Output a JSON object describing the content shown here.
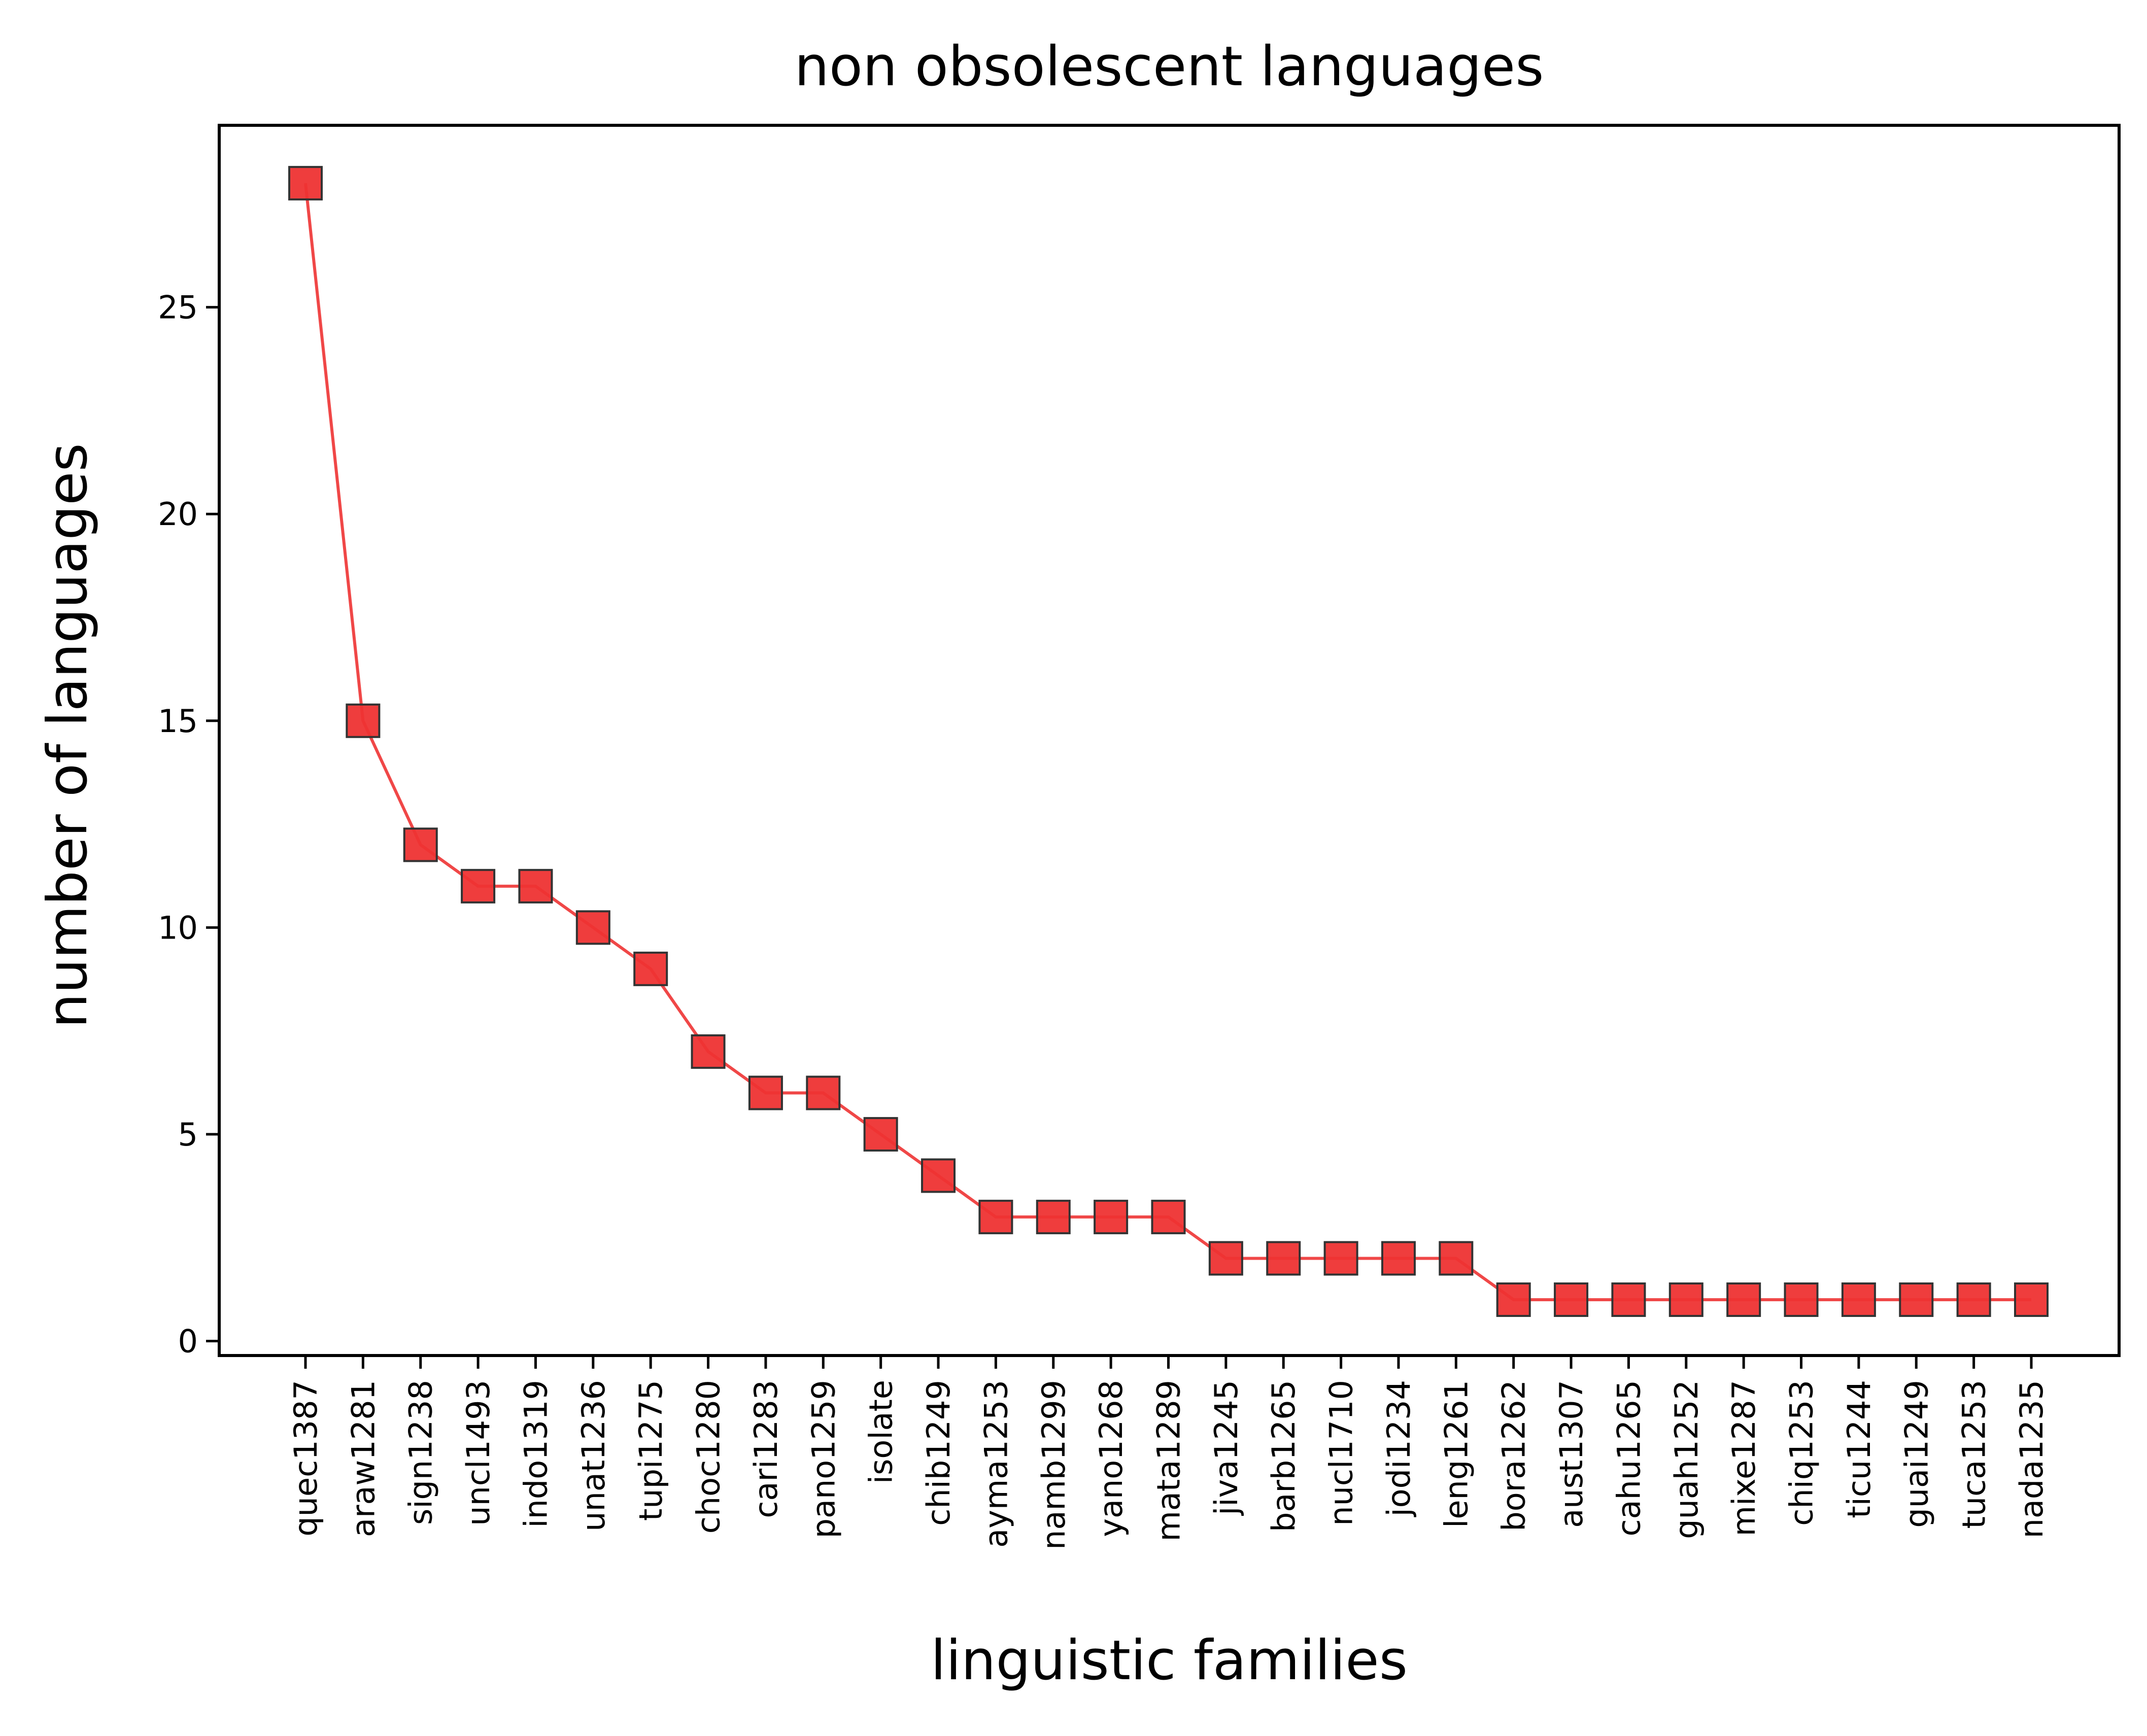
{
  "chart_data": {
    "type": "line",
    "title": "non obsolescent languages",
    "xlabel": "linguistic families",
    "ylabel": "number of languages",
    "categories": [
      "quec1387",
      "araw1281",
      "sign1238",
      "uncl1493",
      "indo1319",
      "unat1236",
      "tupi1275",
      "choc1280",
      "cari1283",
      "pano1259",
      "isolate",
      "chib1249",
      "ayma1253",
      "namb1299",
      "yano1268",
      "mata1289",
      "jiva1245",
      "barb1265",
      "nucl1710",
      "jodi1234",
      "leng1261",
      "bora1262",
      "aust1307",
      "cahu1265",
      "guah1252",
      "mixe1287",
      "chiq1253",
      "ticu1244",
      "guai1249",
      "tuca1253",
      "nada1235"
    ],
    "series": [
      {
        "values": [
          28,
          15,
          12,
          11,
          11,
          10,
          9,
          7,
          6,
          6,
          5,
          4,
          3,
          3,
          3,
          3,
          2,
          2,
          2,
          2,
          2,
          1,
          1,
          1,
          1,
          1,
          1,
          1,
          1,
          1,
          1
        ]
      }
    ],
    "ylim": [
      -0.35,
      29.4
    ],
    "yticks": [
      0,
      5,
      10,
      15,
      20,
      25
    ],
    "grid": false,
    "marker": "square",
    "color": "#ee3333",
    "marker_edge_color": "#333333"
  }
}
